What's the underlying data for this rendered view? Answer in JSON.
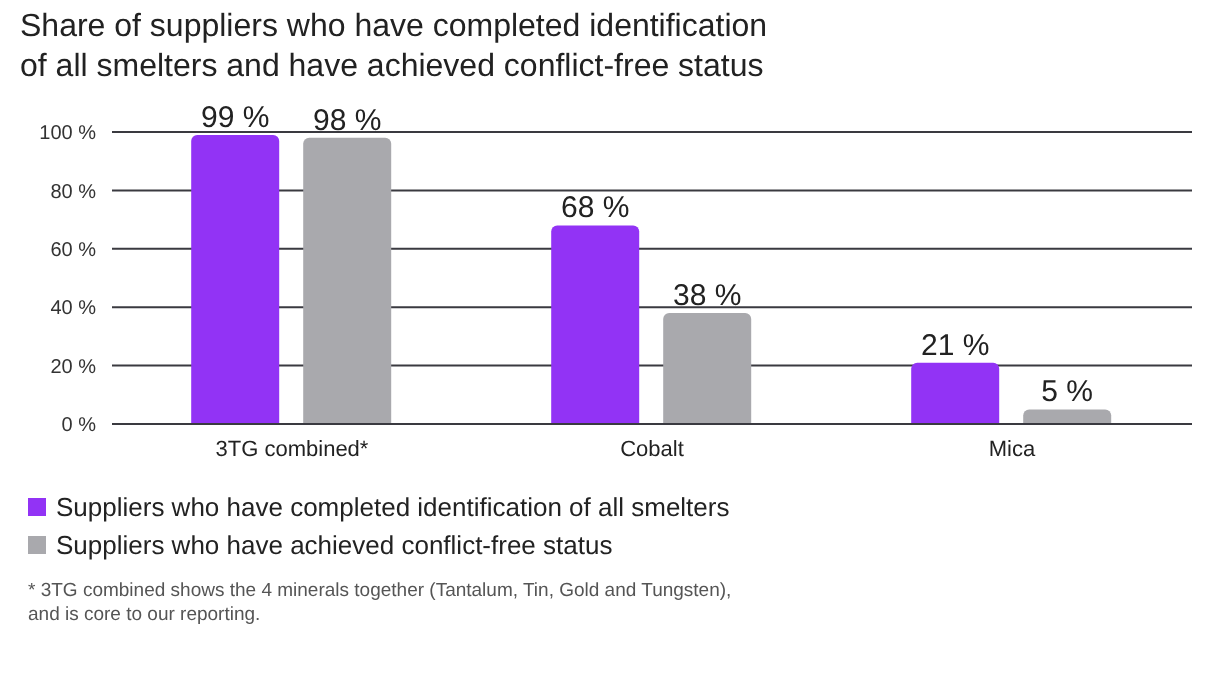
{
  "chart_data": {
    "type": "bar",
    "title": "Share of suppliers who have completed identification\nof all smelters and have achieved conflict-free status",
    "categories": [
      "3TG combined*",
      "Cobalt",
      "Mica"
    ],
    "series": [
      {
        "name": "Suppliers who have completed identification of all smelters",
        "color": "#9233f5",
        "values": [
          99,
          68,
          21
        ],
        "value_labels": [
          "99 %",
          "68 %",
          "21 %"
        ]
      },
      {
        "name": "Suppliers who have achieved conflict-free status",
        "color": "#a9a9ad",
        "values": [
          98,
          38,
          5
        ],
        "value_labels": [
          "98 %",
          "38 %",
          "5 %"
        ]
      }
    ],
    "ylim": [
      0,
      100
    ],
    "yticks": [
      {
        "value": 0,
        "label": "0 %"
      },
      {
        "value": 20,
        "label": "20 %"
      },
      {
        "value": 40,
        "label": "40 %"
      },
      {
        "value": 60,
        "label": "60 %"
      },
      {
        "value": 80,
        "label": "80 %"
      },
      {
        "value": 100,
        "label": "100 %"
      }
    ],
    "grid": "y",
    "legend": "bottom left",
    "annotations": [
      "* 3TG combined shows the 4 minerals together (Tantalum, Tin, Gold and Tungsten),\nand is core to our reporting."
    ]
  }
}
